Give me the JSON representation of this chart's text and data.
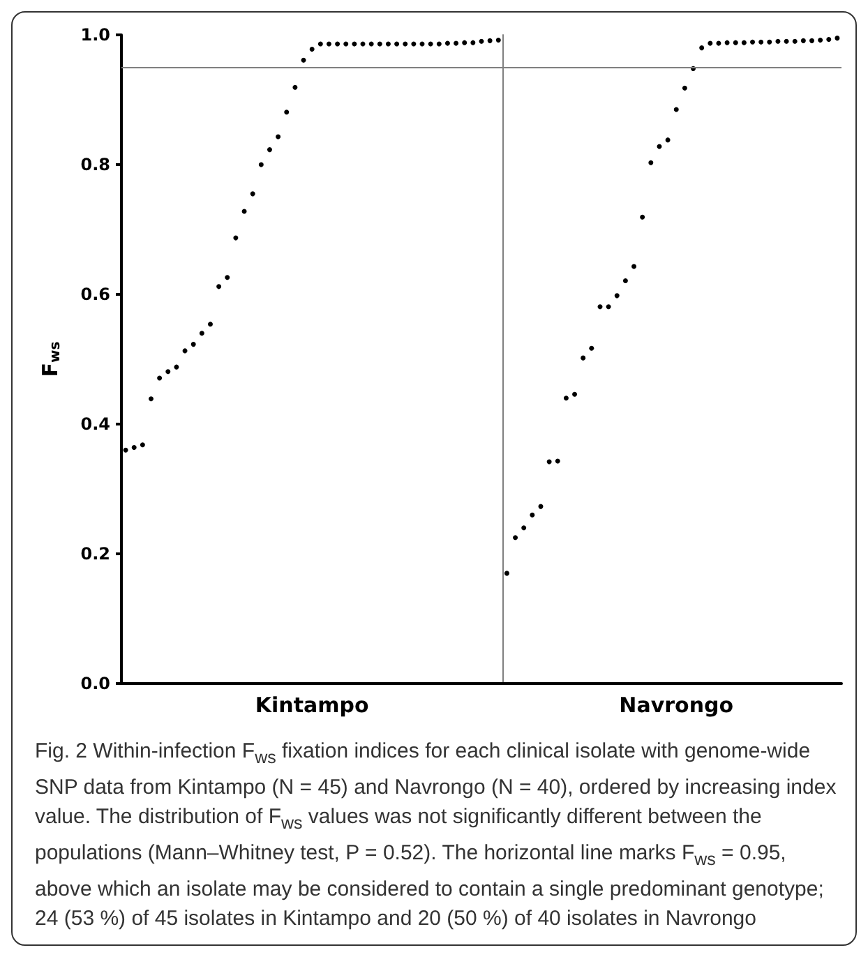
{
  "chart_data": {
    "type": "scatter",
    "ylabel": "F$_{ws}$",
    "categories": [
      null,
      null,
      null,
      null,
      null,
      null,
      null,
      null,
      null,
      null,
      null,
      null,
      null,
      null,
      null,
      null,
      null,
      null,
      null,
      null,
      null,
      null,
      "Kintampo",
      null,
      null,
      null,
      null,
      null,
      null,
      null,
      null,
      null,
      null,
      null,
      null,
      null,
      null,
      null,
      null,
      null,
      null,
      null,
      null,
      null,
      null,
      null,
      null,
      null,
      null,
      null,
      null,
      null,
      null,
      null,
      null,
      null,
      null,
      null,
      null,
      null,
      null,
      null,
      null,
      null,
      null,
      "Navrongo",
      null,
      null,
      null,
      null,
      null,
      null,
      null,
      null,
      null,
      null,
      null,
      null,
      null,
      null,
      null,
      null,
      null,
      null,
      null
    ],
    "series": [
      {
        "color": "#000000",
        "values": [
          0.36,
          0.364,
          0.368,
          0.439,
          0.471,
          0.481,
          0.488,
          0.513,
          0.523,
          0.54,
          0.554,
          0.612,
          0.626,
          0.687,
          0.728,
          0.755,
          0.8,
          0.823,
          0.843,
          0.881,
          0.919,
          0.961,
          0.978,
          0.986,
          0.986,
          0.986,
          0.986,
          0.986,
          0.986,
          0.986,
          0.986,
          0.986,
          0.986,
          0.986,
          0.986,
          0.986,
          0.986,
          0.986,
          0.987,
          0.987,
          0.988,
          0.988,
          0.99,
          0.991,
          0.992,
          null,
          null,
          null,
          null,
          null,
          null,
          null,
          null,
          null,
          null,
          null,
          null,
          null,
          null,
          null,
          null,
          null,
          null,
          null,
          null,
          null,
          null,
          null,
          null,
          null,
          null,
          null,
          null,
          null,
          null,
          null,
          null,
          null,
          null,
          null,
          null,
          null,
          null,
          null,
          null
        ]
      },
      {
        "color": "#000000",
        "values": [
          null,
          null,
          null,
          null,
          null,
          null,
          null,
          null,
          null,
          null,
          null,
          null,
          null,
          null,
          null,
          null,
          null,
          null,
          null,
          null,
          null,
          null,
          null,
          null,
          null,
          null,
          null,
          null,
          null,
          null,
          null,
          null,
          null,
          null,
          null,
          null,
          null,
          null,
          null,
          null,
          null,
          null,
          null,
          null,
          null,
          0.17,
          0.225,
          0.24,
          0.26,
          0.273,
          0.342,
          0.343,
          0.44,
          0.446,
          0.502,
          0.517,
          0.581,
          0.581,
          0.598,
          0.621,
          0.643,
          0.719,
          0.803,
          0.828,
          0.838,
          0.885,
          0.918,
          0.948,
          0.98,
          0.987,
          0.987,
          0.988,
          0.988,
          0.988,
          0.989,
          0.989,
          0.989,
          0.99,
          0.99,
          0.99,
          0.991,
          0.991,
          0.992,
          0.993,
          0.995
        ]
      }
    ],
    "ylim": [
      0,
      1
    ],
    "yticks": [
      {
        "value": 0,
        "label": "0.0"
      },
      0.2,
      0.4,
      0.6,
      0.8,
      {
        "value": 1,
        "label": "1.0"
      }
    ],
    "ref_lines": [
      {
        "axis": "y",
        "value": 0.95,
        "color": "#808080"
      }
    ],
    "marker": "circle",
    "grid": false,
    "annotations": [
      "Fig. 2 Within-infection F$_{ws}$ fixation indices for each clinical isolate with genome-wide SNP data from Kintampo (N = 45) and Navrongo (N = 40), ordered by increasing index value. The distribution of F$_{ws}$ values was not significantly different between the populations (Mann–Whitney test, P = 0.52). The horizontal line marks F$_{ws}$ = 0.95, above which an isolate may be considered to contain a single predominant genotype; 24 (53 %) of 45 isolates in Kintampo and 20 (50 %) of 40 isolates in Navrongo"
    ]
  }
}
